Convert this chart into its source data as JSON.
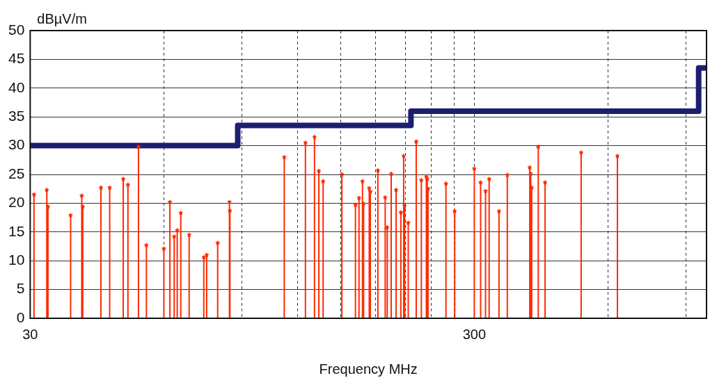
{
  "chart_data": {
    "type": "lollipop",
    "xlabel": "Frequency MHz",
    "ylabel": "dBµV/m",
    "log": "x",
    "xlim": [
      30,
      1000
    ],
    "xticks": [
      30,
      {
        "value": 60,
        "label": null
      },
      {
        "value": 90,
        "label": null
      },
      {
        "value": 120,
        "label": null
      },
      {
        "value": 150,
        "label": null
      },
      {
        "value": 180,
        "label": null
      },
      {
        "value": 210,
        "label": null
      },
      {
        "value": 240,
        "label": null
      },
      {
        "value": 270,
        "label": null
      },
      300,
      {
        "value": 600,
        "label": null
      },
      {
        "value": 900,
        "label": null
      }
    ],
    "ylim": [
      0,
      50
    ],
    "yticks": [
      0,
      5,
      10,
      15,
      20,
      25,
      30,
      35,
      40,
      45,
      50
    ],
    "grid": true,
    "series": [
      {
        "color": "#ff2a00",
        "marker": "star",
        "x": [
          30.6,
          32.7,
          32.9,
          37.0,
          39.2,
          39.4,
          43.3,
          45.3,
          48.6,
          49.8,
          52.6,
          54.8,
          60.0,
          61.9,
          63.3,
          64.3,
          65.5,
          68.4,
          73.8,
          74.9,
          79.3,
          84.3,
          84.5,
          112,
          125,
          131,
          134,
          137,
          151,
          162,
          165,
          168,
          169,
          174,
          175,
          182,
          189,
          191,
          195,
          200,
          205,
          208,
          209,
          213,
          222,
          228,
          234,
          235,
          236,
          259,
          271,
          300,
          310,
          318,
          324,
          341,
          356,
          400,
          402,
          404,
          418,
          433,
          522,
          630
        ],
        "values": [
          21.5,
          22.3,
          19.4,
          17.9,
          21.3,
          19.4,
          22.7,
          22.7,
          24.2,
          23.2,
          29.8,
          12.7,
          12.1,
          20.2,
          14.2,
          15.3,
          18.3,
          14.5,
          10.6,
          11.0,
          13.1,
          20.2,
          18.7,
          28.0,
          30.5,
          31.5,
          25.6,
          23.8,
          25.0,
          19.7,
          20.9,
          23.8,
          19.9,
          22.6,
          22.0,
          25.7,
          21.0,
          15.8,
          25.1,
          22.3,
          18.4,
          28.2,
          19.5,
          16.6,
          30.7,
          24.0,
          24.6,
          24.2,
          22.5,
          23.4,
          18.6,
          26.0,
          23.6,
          22.1,
          24.2,
          18.6,
          24.9,
          26.2,
          25.1,
          22.7,
          29.8,
          23.6,
          28.8,
          28.2
        ]
      },
      {
        "type": "step",
        "color": "#1c1f70",
        "x": [
          30,
          88,
          216,
          960,
          1000
        ],
        "values": [
          30,
          33.5,
          36,
          43.5,
          43.5
        ]
      }
    ]
  }
}
